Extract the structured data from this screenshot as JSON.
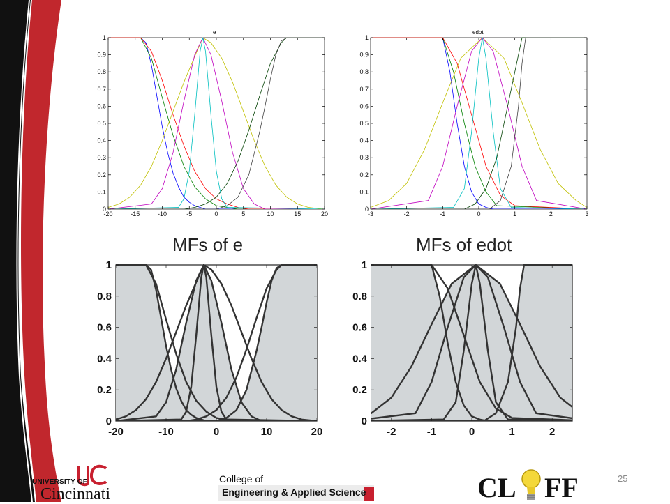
{
  "slide": {
    "page_number": "25",
    "logos": {
      "uc_line1": "UNIVERSITY OF",
      "uc_line2": "Cincinnati",
      "ceas_line1": "College of",
      "ceas_line2": "Engineering & Applied Science",
      "cliff_left": "CL",
      "cliff_right": "FF"
    },
    "colors": {
      "accent_red": "#c1272d",
      "band_black": "#111111",
      "logo_red": "#c8202f"
    }
  },
  "chart_data": [
    {
      "type": "line",
      "title": "e",
      "xlim": [
        -20,
        20
      ],
      "ylim": [
        0,
        1
      ],
      "xticks": [
        -20,
        -15,
        -10,
        -5,
        0,
        5,
        10,
        15,
        20
      ],
      "yticks": [
        0,
        0.1,
        0.2,
        0.3,
        0.4,
        0.5,
        0.6,
        0.7,
        0.8,
        0.9,
        1
      ],
      "series": [
        {
          "color": "#0000ff",
          "x": [
            -20,
            -14,
            -13,
            -12,
            -11,
            -10,
            -9,
            -8,
            -7,
            -6,
            -5,
            -4,
            -3,
            -2,
            -1,
            0,
            2,
            20
          ],
          "y": [
            1,
            1,
            0.97,
            0.84,
            0.66,
            0.48,
            0.33,
            0.21,
            0.13,
            0.07,
            0.04,
            0.02,
            0.01,
            0,
            0,
            0,
            0,
            0
          ]
        },
        {
          "color": "#008000",
          "x": [
            -20,
            -14,
            -12,
            -10,
            -8,
            -6,
            -4,
            -2,
            0,
            2,
            4,
            20
          ],
          "y": [
            1,
            1,
            0.88,
            0.65,
            0.43,
            0.25,
            0.13,
            0.06,
            0.02,
            0.01,
            0,
            0
          ]
        },
        {
          "color": "#ff0000",
          "x": [
            -20,
            -14,
            -12,
            -10,
            -8,
            -6,
            -4,
            -2,
            0,
            2,
            4,
            6,
            20
          ],
          "y": [
            1,
            1,
            0.92,
            0.75,
            0.55,
            0.37,
            0.22,
            0.12,
            0.06,
            0.03,
            0.01,
            0,
            0
          ]
        },
        {
          "color": "#c0c000",
          "x": [
            -20,
            -18,
            -16,
            -14,
            -12,
            -10,
            -8,
            -6,
            -4,
            -2.5,
            -1,
            1,
            3,
            5,
            7,
            9,
            11,
            13,
            15,
            17,
            20
          ],
          "y": [
            0.01,
            0.03,
            0.07,
            0.14,
            0.25,
            0.4,
            0.57,
            0.74,
            0.89,
            1,
            0.97,
            0.88,
            0.74,
            0.57,
            0.4,
            0.25,
            0.14,
            0.07,
            0.03,
            0.01,
            0
          ]
        },
        {
          "color": "#bf00bf",
          "x": [
            -20,
            -12,
            -10,
            -8,
            -6,
            -4,
            -2.5,
            -1,
            1,
            3,
            5,
            7,
            9,
            20
          ],
          "y": [
            0,
            0.03,
            0.12,
            0.33,
            0.63,
            0.9,
            1,
            0.9,
            0.63,
            0.33,
            0.12,
            0.03,
            0,
            0
          ]
        },
        {
          "color": "#00bfbf",
          "x": [
            -20,
            -7,
            -6,
            -5,
            -4,
            -3,
            -2.5,
            -2,
            -1,
            0,
            1,
            2,
            20
          ],
          "y": [
            0,
            0.01,
            0.06,
            0.22,
            0.55,
            0.92,
            1,
            0.92,
            0.55,
            0.22,
            0.06,
            0.01,
            0
          ]
        },
        {
          "color": "#004000",
          "x": [
            -20,
            -6,
            -4,
            -2,
            0,
            2,
            4,
            6,
            8,
            10,
            12,
            13,
            20
          ],
          "y": [
            0,
            0,
            0.01,
            0.03,
            0.07,
            0.15,
            0.28,
            0.46,
            0.66,
            0.85,
            0.97,
            1,
            1
          ]
        },
        {
          "color": "#404040",
          "x": [
            -20,
            0,
            2,
            4,
            6,
            8,
            9,
            10,
            11,
            12,
            13,
            20
          ],
          "y": [
            0,
            0,
            0.02,
            0.07,
            0.2,
            0.45,
            0.6,
            0.76,
            0.9,
            0.98,
            1,
            1
          ]
        }
      ]
    },
    {
      "type": "line",
      "title": "edot",
      "xlim": [
        -3,
        3
      ],
      "ylim": [
        0,
        1
      ],
      "xticks": [
        -3,
        -2,
        -1,
        0,
        1,
        2,
        3
      ],
      "yticks": [
        0,
        0.1,
        0.2,
        0.3,
        0.4,
        0.5,
        0.6,
        0.7,
        0.8,
        0.9,
        1
      ],
      "series": [
        {
          "color": "#0000ff",
          "x": [
            -3,
            -1,
            -0.8,
            -0.6,
            -0.4,
            -0.2,
            0,
            0.2,
            0.4,
            3
          ],
          "y": [
            1,
            1,
            0.8,
            0.5,
            0.25,
            0.1,
            0.03,
            0.01,
            0,
            0
          ]
        },
        {
          "color": "#008000",
          "x": [
            -3,
            -1,
            -0.7,
            -0.4,
            -0.1,
            0.2,
            0.5,
            3
          ],
          "y": [
            1,
            1,
            0.8,
            0.5,
            0.25,
            0.1,
            0.02,
            0
          ]
        },
        {
          "color": "#ff0000",
          "x": [
            -3,
            -1,
            -0.6,
            -0.2,
            0.2,
            0.6,
            1,
            3
          ],
          "y": [
            1,
            1,
            0.85,
            0.55,
            0.25,
            0.08,
            0.02,
            0
          ]
        },
        {
          "color": "#c0c000",
          "x": [
            -3,
            -2.5,
            -2,
            -1.5,
            -1,
            -0.5,
            0.1,
            0.7,
            1.2,
            1.7,
            2.2,
            2.7,
            3
          ],
          "y": [
            0.01,
            0.05,
            0.15,
            0.35,
            0.62,
            0.88,
            1,
            0.88,
            0.62,
            0.35,
            0.15,
            0.05,
            0.01
          ]
        },
        {
          "color": "#bf00bf",
          "x": [
            -3,
            -1.4,
            -1,
            -0.6,
            -0.2,
            0.1,
            0.4,
            0.8,
            1.2,
            1.6,
            3
          ],
          "y": [
            0,
            0.05,
            0.25,
            0.6,
            0.92,
            1,
            0.92,
            0.6,
            0.25,
            0.05,
            0
          ]
        },
        {
          "color": "#00bfbf",
          "x": [
            -3,
            -0.7,
            -0.4,
            -0.2,
            0,
            0.1,
            0.2,
            0.4,
            0.6,
            0.9,
            3
          ],
          "y": [
            0,
            0.01,
            0.12,
            0.45,
            0.88,
            1,
            0.88,
            0.45,
            0.12,
            0.01,
            0
          ]
        },
        {
          "color": "#004000",
          "x": [
            -3,
            -0.4,
            -0.1,
            0.2,
            0.5,
            0.8,
            1.1,
            1.2,
            3
          ],
          "y": [
            0,
            0,
            0.03,
            0.12,
            0.3,
            0.6,
            0.9,
            1,
            1
          ]
        },
        {
          "color": "#404040",
          "x": [
            -3,
            0.3,
            0.6,
            0.9,
            1.1,
            1.2,
            1.3,
            3
          ],
          "y": [
            0,
            0,
            0.05,
            0.25,
            0.6,
            0.85,
            1,
            1
          ]
        }
      ]
    },
    {
      "type": "area",
      "title": "MFs of e",
      "xlim": [
        -20,
        20
      ],
      "ylim": [
        0,
        1
      ],
      "xticks": [
        -20,
        -10,
        0,
        10,
        20
      ],
      "yticks": [
        0,
        0.2,
        0.4,
        0.6,
        0.8,
        1
      ],
      "series": [
        {
          "shaded": true,
          "x": [
            -20,
            -14,
            -13,
            -12,
            -11,
            -10,
            -9,
            -8,
            -7,
            -6,
            -5,
            -4,
            -3,
            -2,
            -1,
            0,
            2,
            20
          ],
          "y": [
            1,
            1,
            0.97,
            0.84,
            0.66,
            0.48,
            0.33,
            0.21,
            0.13,
            0.07,
            0.04,
            0.02,
            0.01,
            0,
            0,
            0,
            0,
            0
          ]
        },
        {
          "shaded": false,
          "x": [
            -20,
            -14,
            -12,
            -10,
            -8,
            -6,
            -4,
            -2,
            0,
            2,
            4,
            20
          ],
          "y": [
            1,
            1,
            0.88,
            0.65,
            0.43,
            0.25,
            0.13,
            0.06,
            0.02,
            0.01,
            0,
            0
          ]
        },
        {
          "shaded": false,
          "x": [
            -20,
            -18,
            -16,
            -14,
            -12,
            -10,
            -8,
            -6,
            -4,
            -2.5,
            -1,
            1,
            3,
            5,
            7,
            9,
            11,
            13,
            15,
            17,
            20
          ],
          "y": [
            0.01,
            0.03,
            0.07,
            0.14,
            0.25,
            0.4,
            0.57,
            0.74,
            0.89,
            1,
            0.97,
            0.88,
            0.74,
            0.57,
            0.4,
            0.25,
            0.14,
            0.07,
            0.03,
            0.01,
            0
          ]
        },
        {
          "shaded": true,
          "x": [
            -20,
            -12,
            -10,
            -8,
            -6,
            -4,
            -2.5,
            -1,
            1,
            3,
            5,
            7,
            9,
            20
          ],
          "y": [
            0,
            0.03,
            0.12,
            0.33,
            0.63,
            0.9,
            1,
            0.9,
            0.63,
            0.33,
            0.12,
            0.03,
            0,
            0
          ]
        },
        {
          "shaded": false,
          "x": [
            -20,
            -7,
            -6,
            -5,
            -4,
            -3,
            -2.5,
            -2,
            -1,
            0,
            1,
            2,
            20
          ],
          "y": [
            0,
            0.01,
            0.06,
            0.22,
            0.55,
            0.92,
            1,
            0.92,
            0.55,
            0.22,
            0.06,
            0.01,
            0
          ]
        },
        {
          "shaded": false,
          "x": [
            -20,
            -6,
            -4,
            -2,
            0,
            2,
            4,
            6,
            8,
            10,
            12,
            13,
            20
          ],
          "y": [
            0,
            0,
            0.01,
            0.03,
            0.07,
            0.15,
            0.28,
            0.46,
            0.66,
            0.85,
            0.97,
            1,
            1
          ]
        },
        {
          "shaded": true,
          "x": [
            -20,
            0,
            2,
            4,
            6,
            8,
            9,
            10,
            11,
            12,
            13,
            20
          ],
          "y": [
            0,
            0,
            0.02,
            0.07,
            0.2,
            0.45,
            0.6,
            0.76,
            0.9,
            0.98,
            1,
            1
          ]
        }
      ]
    },
    {
      "type": "area",
      "title": "MFs of edot",
      "xlim": [
        -2.5,
        2.5
      ],
      "ylim": [
        0,
        1
      ],
      "xticks": [
        -2,
        -1,
        0,
        1,
        2
      ],
      "yticks": [
        0,
        0.2,
        0.4,
        0.6,
        0.8,
        1
      ],
      "series": [
        {
          "shaded": true,
          "x": [
            -3,
            -1,
            -0.8,
            -0.6,
            -0.4,
            -0.2,
            0,
            0.2,
            0.4,
            3
          ],
          "y": [
            1,
            1,
            0.8,
            0.5,
            0.25,
            0.1,
            0.03,
            0.01,
            0,
            0
          ]
        },
        {
          "shaded": false,
          "x": [
            -3,
            -1,
            -0.6,
            -0.2,
            0.2,
            0.6,
            1,
            3
          ],
          "y": [
            1,
            1,
            0.85,
            0.55,
            0.25,
            0.08,
            0.02,
            0
          ]
        },
        {
          "shaded": true,
          "x": [
            -3,
            -2.5,
            -2,
            -1.5,
            -1,
            -0.5,
            0.1,
            0.7,
            1.2,
            1.7,
            2.2,
            2.7,
            3
          ],
          "y": [
            0.01,
            0.05,
            0.15,
            0.35,
            0.62,
            0.88,
            1,
            0.88,
            0.62,
            0.35,
            0.15,
            0.05,
            0.01
          ]
        },
        {
          "shaded": false,
          "x": [
            -3,
            -1.4,
            -1,
            -0.6,
            -0.2,
            0.1,
            0.4,
            0.8,
            1.2,
            1.6,
            3
          ],
          "y": [
            0,
            0.05,
            0.25,
            0.6,
            0.92,
            1,
            0.92,
            0.6,
            0.25,
            0.05,
            0
          ]
        },
        {
          "shaded": false,
          "x": [
            -3,
            -0.7,
            -0.4,
            -0.2,
            0,
            0.1,
            0.2,
            0.4,
            0.6,
            0.9,
            3
          ],
          "y": [
            0,
            0.01,
            0.12,
            0.45,
            0.88,
            1,
            0.88,
            0.45,
            0.12,
            0.01,
            0
          ]
        },
        {
          "shaded": true,
          "x": [
            -3,
            0.3,
            0.6,
            0.9,
            1.1,
            1.2,
            1.3,
            3
          ],
          "y": [
            0,
            0,
            0.05,
            0.25,
            0.6,
            0.85,
            1,
            1
          ]
        }
      ]
    }
  ]
}
